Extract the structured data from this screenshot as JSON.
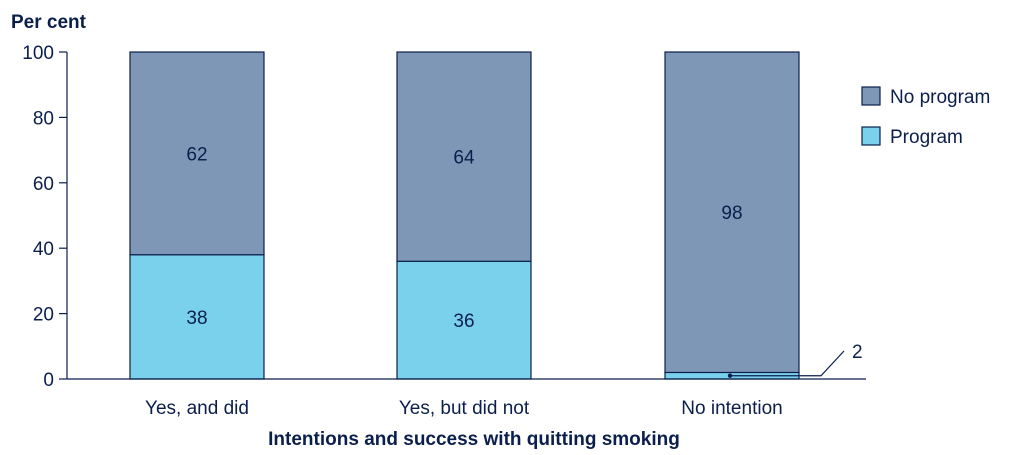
{
  "chart_data": {
    "type": "bar",
    "stacked": true,
    "title": "",
    "ylabel": "Per cent",
    "xlabel": "Intentions and success with quitting smoking",
    "ylim": [
      0,
      100
    ],
    "yticks": [
      0,
      20,
      40,
      60,
      80,
      100
    ],
    "categories": [
      "Yes, and did",
      "Yes, but did not",
      "No intention"
    ],
    "series": [
      {
        "name": "Program",
        "values": [
          38,
          36,
          2
        ],
        "color": "#79d1ec"
      },
      {
        "name": "No program",
        "values": [
          62,
          64,
          98
        ],
        "color": "#7f97b7"
      }
    ],
    "legend": {
      "position": "right",
      "order": [
        "No program",
        "Program"
      ]
    },
    "callout": {
      "category": "No intention",
      "series": "Program",
      "label": "2"
    },
    "grid": false
  },
  "colors": {
    "text": "#0b1f4d",
    "axis": "#0b1f4d",
    "bar_border": "#0b1f4d"
  }
}
